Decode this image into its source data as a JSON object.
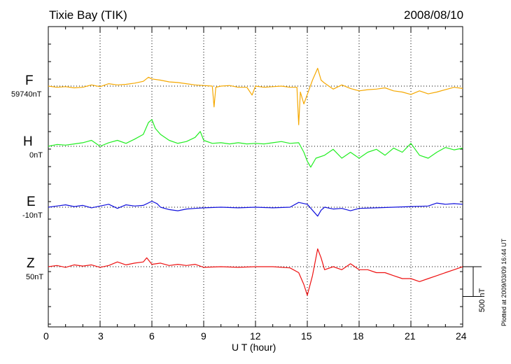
{
  "chart_data": {
    "type": "line",
    "title": "Tixie Bay (TIK)",
    "date": "2008/08/10",
    "xlabel": "U T (hour)",
    "xlim": [
      0,
      24
    ],
    "xticks": [
      "0",
      "3",
      "6",
      "9",
      "12",
      "15",
      "18",
      "21",
      "24"
    ],
    "scale_label": "500 nT",
    "plot_note": "Plotted at 2009/03/09 16:44 UT",
    "grid": true,
    "series": [
      {
        "name": "F",
        "baseline": "59740nT",
        "color": "#f5a800",
        "x": [
          0,
          0.5,
          1,
          1.5,
          2,
          2.5,
          3,
          3.5,
          4,
          4.5,
          5,
          5.5,
          5.8,
          6,
          6.5,
          7,
          7.5,
          8,
          8.5,
          9,
          9.5,
          9.6,
          9.7,
          10,
          10.5,
          11,
          11.5,
          11.8,
          12,
          12.5,
          13,
          13.5,
          14,
          14.4,
          14.5,
          14.6,
          14.8,
          15,
          15.3,
          15.6,
          15.8,
          16,
          16.5,
          17,
          17.5,
          18,
          18.5,
          19,
          19.5,
          20,
          20.5,
          21,
          21.5,
          22,
          22.5,
          23,
          23.5,
          24
        ],
        "y": [
          0,
          -20,
          -10,
          -30,
          -20,
          20,
          -10,
          40,
          20,
          30,
          50,
          80,
          150,
          120,
          100,
          70,
          60,
          40,
          20,
          10,
          0,
          -350,
          -20,
          0,
          10,
          -20,
          -20,
          -150,
          0,
          -20,
          -10,
          0,
          -20,
          -20,
          -650,
          -100,
          -300,
          -140,
          100,
          300,
          100,
          50,
          -50,
          20,
          -40,
          -80,
          -60,
          -50,
          -30,
          -80,
          -100,
          -140,
          -80,
          -130,
          -100,
          -60,
          -20,
          -40
        ]
      },
      {
        "name": "H",
        "baseline": "0nT",
        "color": "#22ee22",
        "x": [
          0,
          0.5,
          1,
          1.5,
          2,
          2.5,
          3,
          3.5,
          4,
          4.5,
          5,
          5.5,
          5.8,
          6,
          6.2,
          6.5,
          7,
          7.5,
          8,
          8.5,
          8.8,
          9,
          9.5,
          10,
          10.5,
          11,
          11.5,
          12,
          12.5,
          13,
          13.5,
          14,
          14.5,
          14.8,
          15,
          15.2,
          15.5,
          16,
          16.5,
          17,
          17.5,
          18,
          18.5,
          19,
          19.5,
          20,
          20.5,
          21,
          21.5,
          22,
          22.5,
          23,
          23.5,
          24
        ],
        "y": [
          0,
          30,
          20,
          40,
          60,
          100,
          0,
          60,
          100,
          50,
          120,
          200,
          400,
          450,
          300,
          200,
          100,
          50,
          80,
          150,
          250,
          100,
          50,
          60,
          40,
          60,
          40,
          50,
          40,
          60,
          80,
          50,
          60,
          -100,
          -250,
          -350,
          -200,
          -150,
          -50,
          -200,
          -100,
          -200,
          -100,
          -50,
          -150,
          -30,
          -100,
          50,
          -150,
          -200,
          -100,
          -20,
          -60,
          -30
        ]
      },
      {
        "name": "E",
        "baseline": "-10nT",
        "color": "#1010dd",
        "x": [
          0,
          0.5,
          1,
          1.5,
          2,
          2.5,
          3,
          3.5,
          4,
          4.5,
          5,
          5.5,
          6,
          6.3,
          6.5,
          7,
          7.5,
          8,
          8.5,
          9,
          10,
          11,
          12,
          13,
          14,
          14.5,
          15,
          15.3,
          15.6,
          15.8,
          16,
          16.5,
          17,
          17.5,
          18,
          19,
          20,
          21,
          22,
          22.5,
          23,
          23.5,
          24
        ],
        "y": [
          0,
          20,
          40,
          10,
          30,
          -10,
          20,
          50,
          -20,
          40,
          20,
          30,
          100,
          60,
          0,
          -40,
          -60,
          -30,
          -20,
          -10,
          0,
          -10,
          0,
          -10,
          0,
          80,
          50,
          -50,
          -150,
          -50,
          0,
          -30,
          -20,
          -60,
          -20,
          -10,
          0,
          10,
          20,
          70,
          50,
          60,
          50
        ]
      },
      {
        "name": "Z",
        "baseline": "50nT",
        "color": "#ee1111",
        "x": [
          0,
          0.5,
          1,
          1.5,
          2,
          2.5,
          3,
          3.5,
          4,
          4.5,
          5,
          5.5,
          5.7,
          6,
          6.5,
          7,
          7.5,
          8,
          8.5,
          9,
          10,
          11,
          12,
          13,
          14,
          14.5,
          14.8,
          15,
          15.3,
          15.6,
          15.8,
          16,
          16.5,
          17,
          17.5,
          18,
          18.5,
          19,
          19.5,
          20,
          20.5,
          21,
          21.5,
          22,
          22.5,
          23,
          23.5,
          24
        ],
        "y": [
          0,
          20,
          -10,
          30,
          10,
          30,
          -10,
          20,
          80,
          30,
          60,
          80,
          150,
          40,
          60,
          20,
          40,
          20,
          40,
          -10,
          0,
          -10,
          0,
          0,
          -20,
          -100,
          -300,
          -480,
          -150,
          300,
          150,
          -50,
          0,
          -50,
          50,
          -50,
          -50,
          -100,
          -100,
          -150,
          -200,
          -200,
          -250,
          -200,
          -150,
          -100,
          -50,
          0
        ]
      }
    ]
  }
}
